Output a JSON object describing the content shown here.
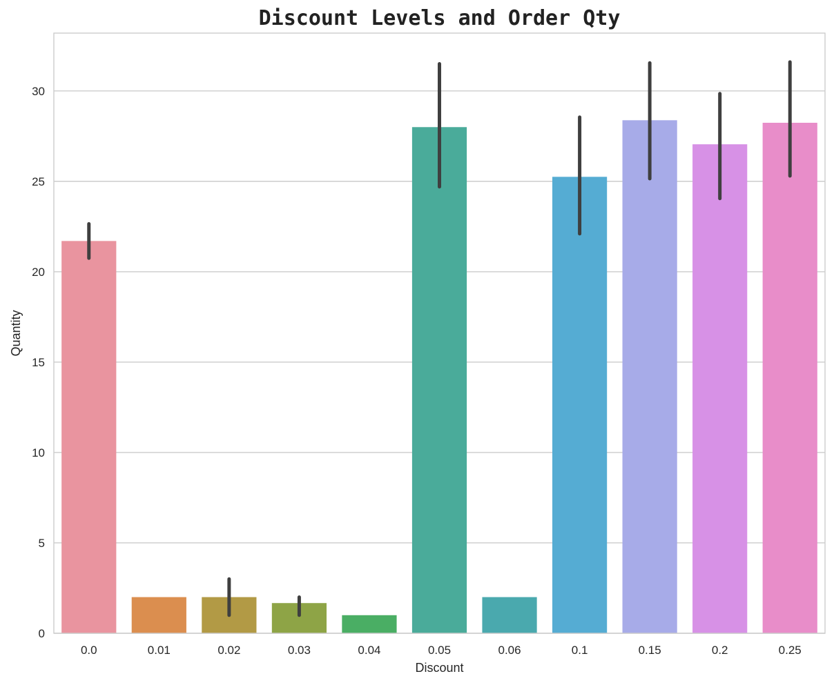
{
  "chart_data": {
    "type": "bar",
    "title": "Discount Levels and Order Qty",
    "xlabel": "Discount",
    "ylabel": "Quantity",
    "categories": [
      "0.0",
      "0.01",
      "0.02",
      "0.03",
      "0.04",
      "0.05",
      "0.06",
      "0.1",
      "0.15",
      "0.2",
      "0.25"
    ],
    "values": [
      21.7,
      2.0,
      2.0,
      1.67,
      1.0,
      28.0,
      2.0,
      25.25,
      28.38,
      27.05,
      28.24
    ],
    "ci_low": [
      20.75,
      null,
      1.0,
      1.0,
      null,
      24.7,
      null,
      22.1,
      25.15,
      24.05,
      25.3
    ],
    "ci_high": [
      22.65,
      null,
      3.0,
      2.0,
      null,
      31.5,
      null,
      28.55,
      31.55,
      29.85,
      31.6
    ],
    "colors": [
      "#e9949f",
      "#db8e4f",
      "#b29a45",
      "#8ea446",
      "#4aae64",
      "#4aab9a",
      "#4aa9ae",
      "#55acd3",
      "#a7abe8",
      "#d791e6",
      "#e88dc9"
    ],
    "yticks": [
      0,
      5,
      10,
      15,
      20,
      25,
      30
    ],
    "ylim": [
      0,
      33.2
    ],
    "grid": "horizontal"
  }
}
